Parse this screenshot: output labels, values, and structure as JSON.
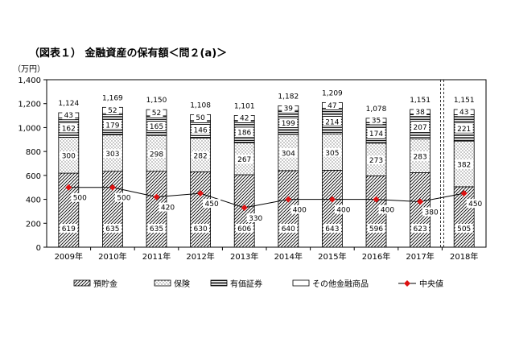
{
  "figure_title": "（図表１） 金融資産の保有額＜問２(a)＞",
  "chart_data": {
    "type": "bar",
    "stacked": true,
    "y_unit": "（万円）",
    "ylim": [
      0,
      1400
    ],
    "yticks": [
      "0",
      "200",
      "400",
      "600",
      "800",
      "1,000",
      "1,200",
      "1,400"
    ],
    "grid": false,
    "legend_position": "bottom",
    "categories": [
      "2009年",
      "2010年",
      "2011年",
      "2012年",
      "2013年",
      "2014年",
      "2015年",
      "2016年",
      "2017年",
      "2018年"
    ],
    "series": [
      {
        "name": "預貯金",
        "pattern": "diagonal-hatch",
        "values": [
          619,
          635,
          635,
          630,
          606,
          640,
          643,
          596,
          623,
          505
        ]
      },
      {
        "name": "保険",
        "pattern": "dots",
        "values": [
          300,
          303,
          298,
          282,
          267,
          304,
          305,
          273,
          283,
          382
        ]
      },
      {
        "name": "有価証券",
        "pattern": "horizontal-lines",
        "values": [
          162,
          179,
          165,
          146,
          186,
          199,
          214,
          174,
          207,
          221
        ]
      },
      {
        "name": "その他金融商品",
        "pattern": "white",
        "values": [
          43,
          52,
          52,
          50,
          42,
          39,
          47,
          35,
          38,
          43
        ]
      }
    ],
    "totals": [
      "1,124",
      "1,169",
      "1,150",
      "1,108",
      "1,101",
      "1,182",
      "1,209",
      "1,078",
      "1,151",
      "1,151"
    ],
    "line_series": {
      "name": "中央値",
      "color": "#dd1111",
      "values": [
        500,
        500,
        420,
        450,
        330,
        400,
        400,
        400,
        380,
        450
      ]
    },
    "series_break_before_index": 9
  }
}
